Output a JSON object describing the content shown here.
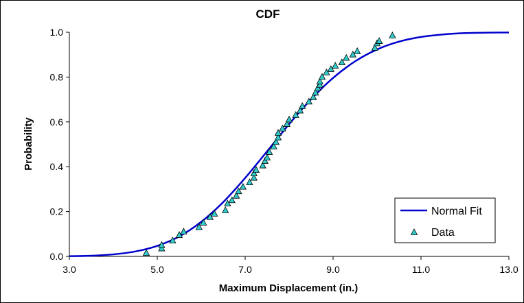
{
  "chart_data": {
    "type": "scatter",
    "title": "CDF",
    "xlabel": "Maximum Displacement (in.)",
    "ylabel": "Probability",
    "xlim": [
      3.0,
      13.0
    ],
    "ylim": [
      0.0,
      1.0
    ],
    "xticks": [
      "3.0",
      "5.0",
      "7.0",
      "9.0",
      "11.0",
      "13.0"
    ],
    "yticks": [
      "0.0",
      "0.2",
      "0.4",
      "0.6",
      "0.8",
      "1.0"
    ],
    "grid": false,
    "legend_position": "bottom-right",
    "series": [
      {
        "name": "Normal Fit",
        "kind": "line",
        "color": "#0000CC",
        "x": [
          3.0,
          3.5,
          4.0,
          4.5,
          5.0,
          5.5,
          6.0,
          6.5,
          7.0,
          7.5,
          8.0,
          8.5,
          9.0,
          9.5,
          10.0,
          10.5,
          11.0,
          11.5,
          12.0,
          12.5,
          13.0
        ],
        "y": [
          0.001,
          0.003,
          0.009,
          0.022,
          0.047,
          0.089,
          0.154,
          0.242,
          0.35,
          0.469,
          0.59,
          0.701,
          0.796,
          0.87,
          0.923,
          0.958,
          0.979,
          0.99,
          0.996,
          0.998,
          0.999
        ]
      },
      {
        "name": "Data",
        "kind": "scatter",
        "marker": "triangle",
        "color": "#33CCCC",
        "x": [
          4.75,
          5.1,
          5.1,
          5.35,
          5.5,
          5.6,
          5.95,
          6.05,
          6.2,
          6.3,
          6.55,
          6.6,
          6.7,
          6.8,
          6.85,
          6.95,
          7.1,
          7.2,
          7.2,
          7.25,
          7.4,
          7.45,
          7.5,
          7.55,
          7.65,
          7.7,
          7.75,
          7.75,
          7.85,
          7.95,
          8.0,
          8.15,
          8.25,
          8.3,
          8.45,
          8.55,
          8.6,
          8.65,
          8.7,
          8.7,
          8.75,
          8.85,
          8.95,
          9.05,
          9.2,
          9.3,
          9.45,
          9.55,
          9.95,
          10.0,
          10.05,
          10.35
        ],
        "y": [
          0.015,
          0.035,
          0.05,
          0.07,
          0.095,
          0.11,
          0.13,
          0.15,
          0.175,
          0.19,
          0.205,
          0.235,
          0.25,
          0.27,
          0.29,
          0.31,
          0.33,
          0.35,
          0.37,
          0.385,
          0.405,
          0.425,
          0.44,
          0.465,
          0.49,
          0.51,
          0.53,
          0.55,
          0.57,
          0.59,
          0.61,
          0.63,
          0.65,
          0.67,
          0.69,
          0.71,
          0.73,
          0.75,
          0.765,
          0.78,
          0.8,
          0.82,
          0.835,
          0.85,
          0.865,
          0.885,
          0.9,
          0.915,
          0.93,
          0.95,
          0.96,
          0.985
        ]
      }
    ]
  }
}
